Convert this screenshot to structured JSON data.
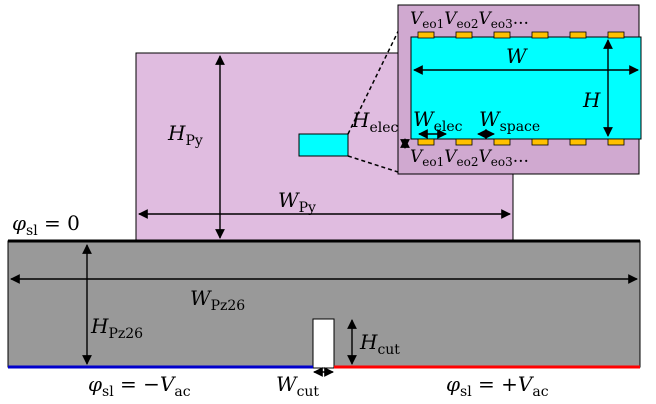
{
  "labels": {
    "H_Py": {
      "main": "H",
      "sub": "Py"
    },
    "W_Py": {
      "main": "W",
      "sub": "Py"
    },
    "H_elec": {
      "main": "H",
      "sub": "elec"
    },
    "phi_top": {
      "main": "φ",
      "sub": "sl",
      "rest": " = 0"
    },
    "W_Pz26": {
      "main": "W",
      "sub": "Pz26"
    },
    "H_Pz26": {
      "main": "H",
      "sub": "Pz26"
    },
    "H_cut": {
      "main": "H",
      "sub": "cut"
    },
    "W_cut": {
      "main": "W",
      "sub": "cut"
    },
    "phi_left": {
      "main": "φ",
      "sub": "sl",
      "mid": " = −",
      "main2": "V",
      "sub2": "ac"
    },
    "phi_right": {
      "main": "φ",
      "sub": "sl",
      "mid": " = +",
      "main2": "V",
      "sub2": "ac"
    },
    "inset_W": {
      "main": "W"
    },
    "inset_H": {
      "main": "H"
    },
    "W_elec": {
      "main": "W",
      "sub": "elec"
    },
    "W_space": {
      "main": "W",
      "sub": "space"
    },
    "top_electrodes": {
      "v1": "V",
      "s1": "eo1",
      "v2": "V",
      "s2": "eo2",
      "v3": "V",
      "s3": "eo3",
      "dots": "..."
    },
    "bottom_electrodes": {
      "v1": "V",
      "s1": "eo1",
      "v2": "V",
      "s2": "eo2",
      "v3": "V",
      "s3": "eo3",
      "dots": "..."
    }
  },
  "colors": {
    "pyrex": "#e0bce0",
    "pz26": "#999999",
    "waveguide": "#00ffff",
    "electrode": "#ffc000",
    "negative_electrode": "#0000cc",
    "positive_electrode": "#ff0000"
  }
}
